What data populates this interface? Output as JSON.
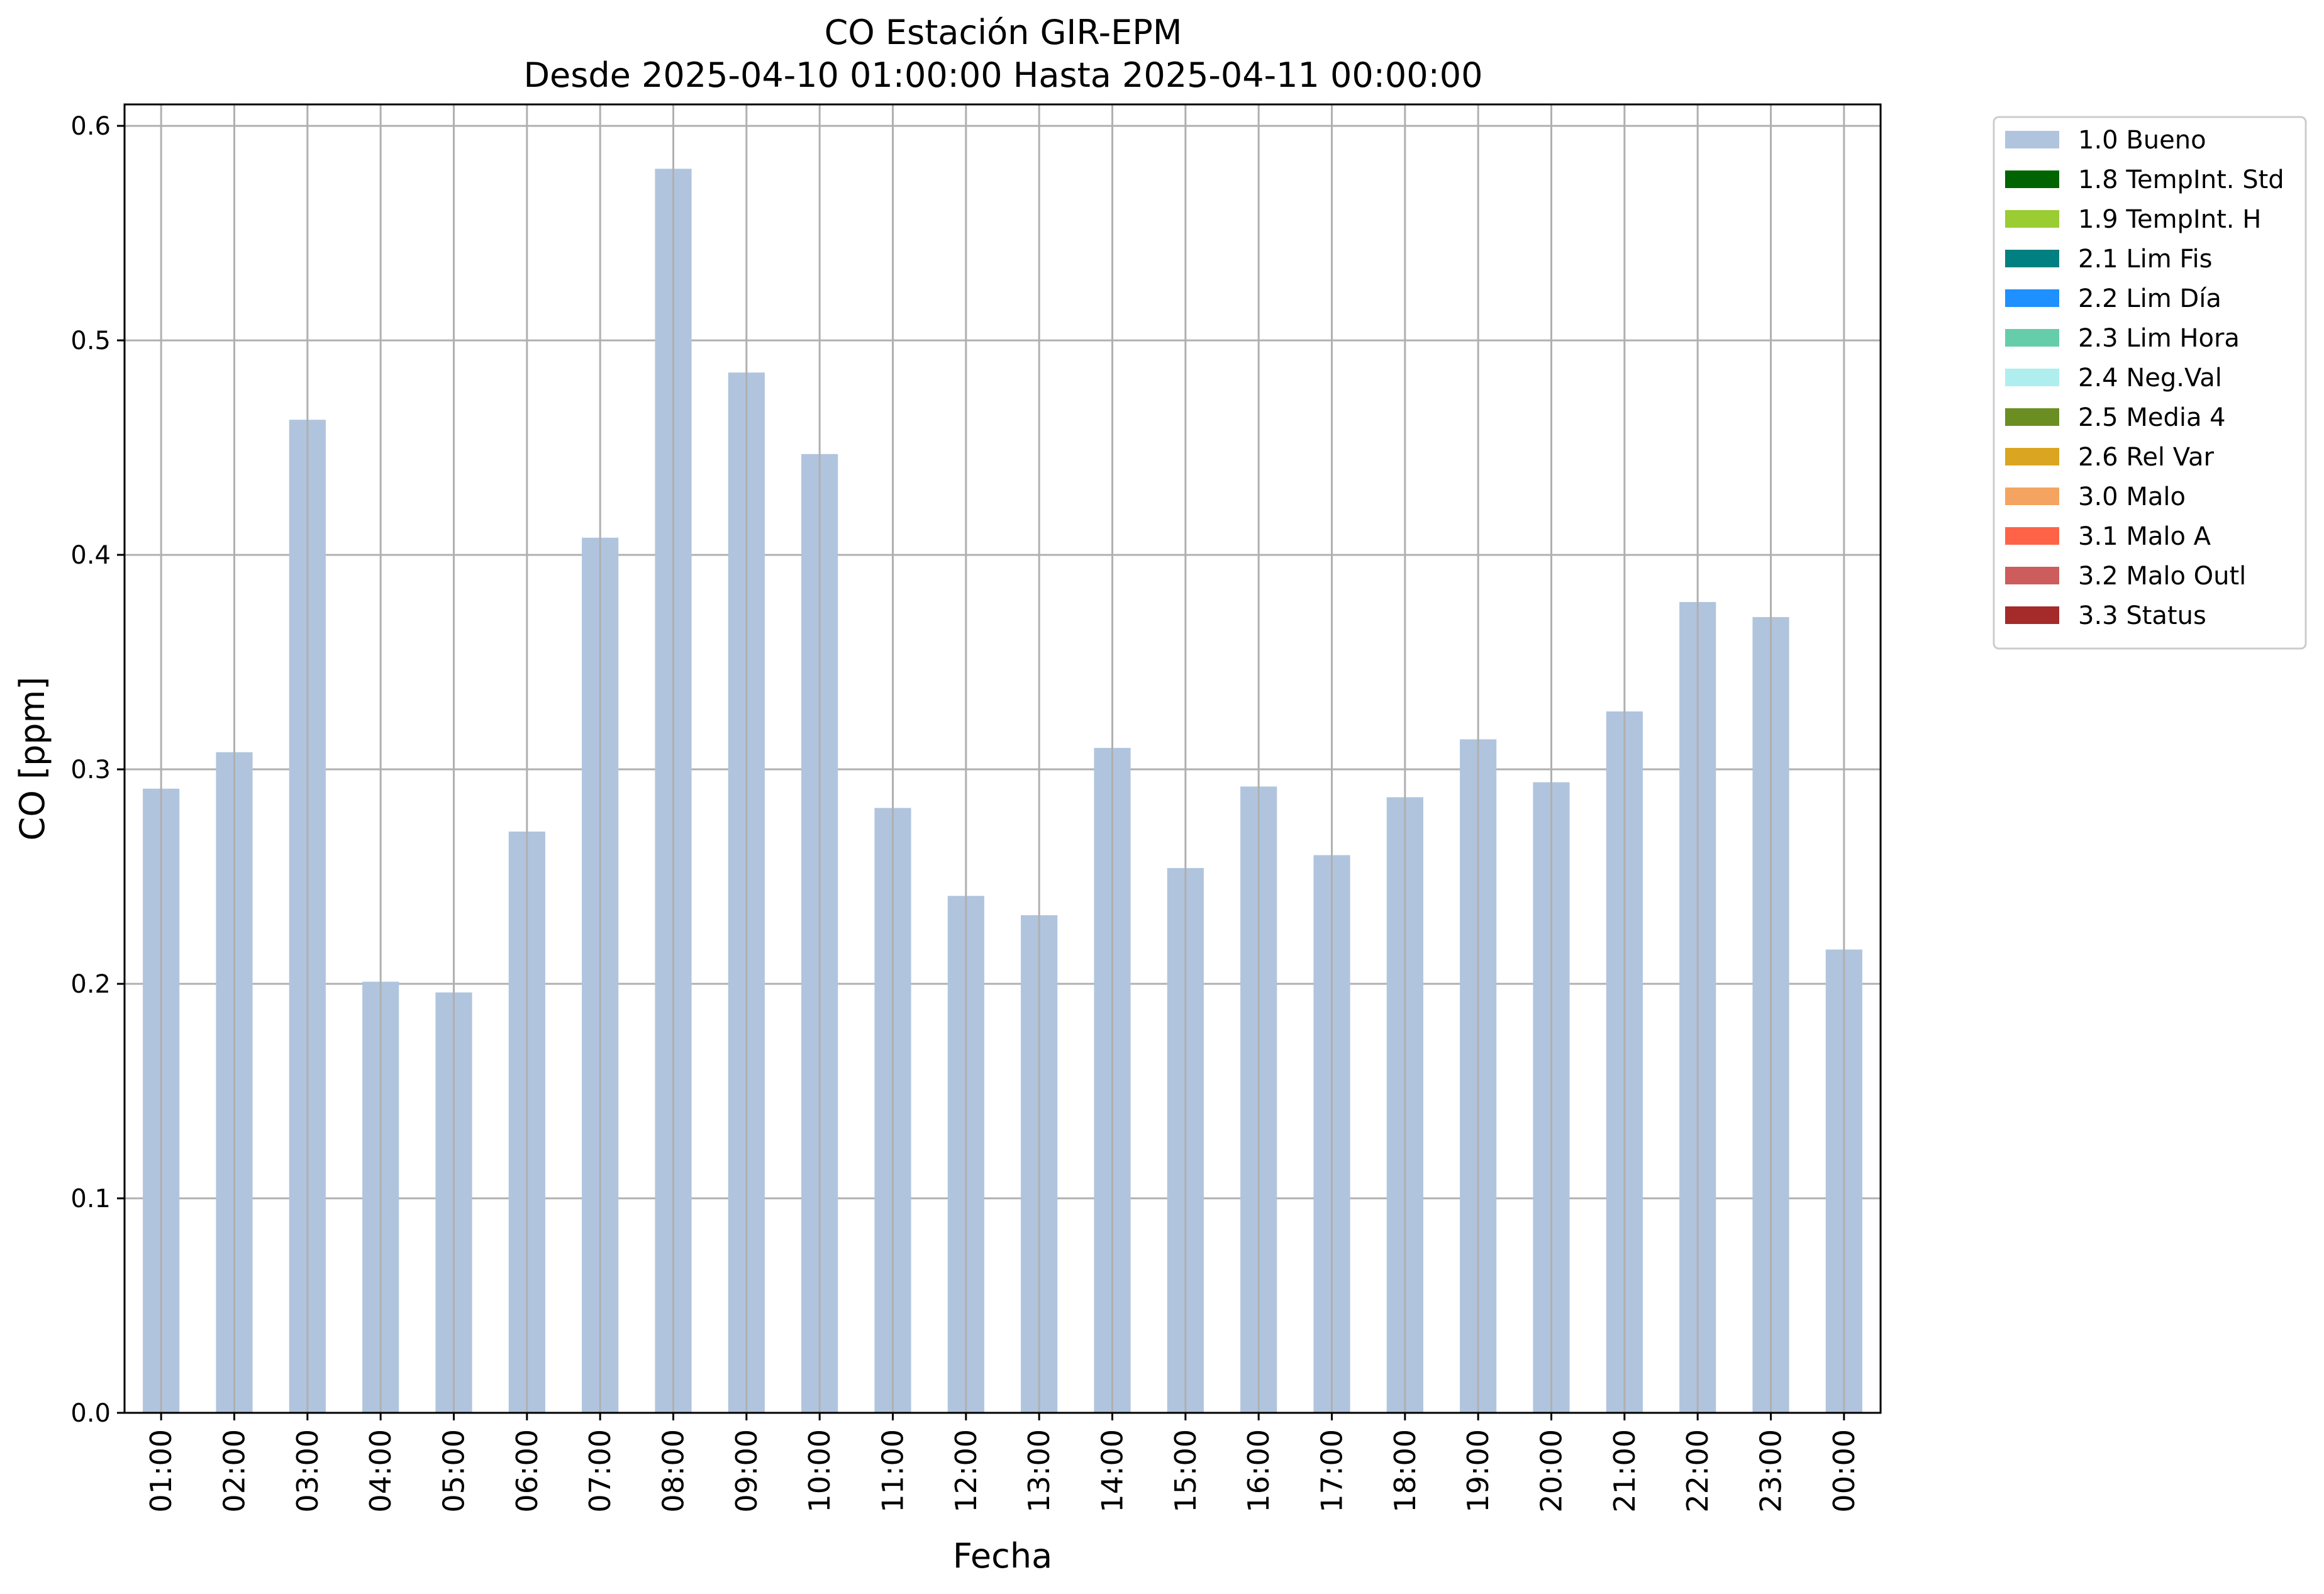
{
  "chart_data": {
    "type": "bar",
    "title": "CO Estación GIR-EPM",
    "subtitle": "Desde 2025-04-10 01:00:00 Hasta 2025-04-11 00:00:00",
    "xlabel": "Fecha",
    "ylabel": "CO [ppm]",
    "ylim": [
      0,
      0.61
    ],
    "yticks": [
      "0.0",
      "0.1",
      "0.2",
      "0.3",
      "0.4",
      "0.5",
      "0.6"
    ],
    "grid": true,
    "legend_position": "outside-top-right",
    "categories": [
      "01:00",
      "02:00",
      "03:00",
      "04:00",
      "05:00",
      "06:00",
      "07:00",
      "08:00",
      "09:00",
      "10:00",
      "11:00",
      "12:00",
      "13:00",
      "14:00",
      "15:00",
      "16:00",
      "17:00",
      "18:00",
      "19:00",
      "20:00",
      "21:00",
      "22:00",
      "23:00",
      "00:00"
    ],
    "series": [
      {
        "name": "1.0 Bueno",
        "color": "#b0c4de",
        "values": [
          0.291,
          0.308,
          0.463,
          0.201,
          0.196,
          0.271,
          0.408,
          0.58,
          0.485,
          0.447,
          0.282,
          0.241,
          0.232,
          0.31,
          0.254,
          0.292,
          0.26,
          0.287,
          0.314,
          0.294,
          0.327,
          0.378,
          0.371,
          0.216
        ]
      }
    ],
    "legend": [
      {
        "label": "1.0 Bueno",
        "color": "#b0c4de"
      },
      {
        "label": "1.8 TempInt. Std",
        "color": "#006400"
      },
      {
        "label": "1.9 TempInt. H",
        "color": "#9acd32"
      },
      {
        "label": "2.1 Lim Fis",
        "color": "#008080"
      },
      {
        "label": "2.2 Lim Día",
        "color": "#1e90ff"
      },
      {
        "label": "2.3 Lim Hora",
        "color": "#66cdaa"
      },
      {
        "label": "2.4 Neg.Val",
        "color": "#afeeee"
      },
      {
        "label": "2.5 Media 4",
        "color": "#6b8e23"
      },
      {
        "label": "2.6 Rel Var",
        "color": "#daa520"
      },
      {
        "label": "3.0 Malo",
        "color": "#f4a460"
      },
      {
        "label": "3.1 Malo A",
        "color": "#ff6347"
      },
      {
        "label": "3.2 Malo Outl",
        "color": "#cd5c5c"
      },
      {
        "label": "3.3 Status",
        "color": "#a52a2a"
      }
    ]
  }
}
